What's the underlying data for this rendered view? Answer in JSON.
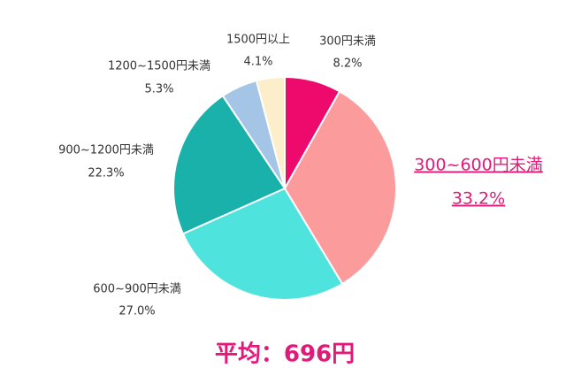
{
  "chart_data": {
    "type": "pie",
    "categories": [
      "300円未満",
      "300~600円未満",
      "600~900円未満",
      "900~1200円未満",
      "1200~1500円未満",
      "1500円以上"
    ],
    "values": [
      8.2,
      33.2,
      27.0,
      22.3,
      5.3,
      4.1
    ],
    "value_labels": [
      "8.2%",
      "33.2%",
      "27.0%",
      "22.3%",
      "5.3%",
      "4.1%"
    ],
    "colors": [
      "#ee0a6c",
      "#fc9b9b",
      "#4fe3de",
      "#1ab1ab",
      "#a5c5e6",
      "#fdeecb"
    ],
    "annotation": "平均：696円"
  }
}
